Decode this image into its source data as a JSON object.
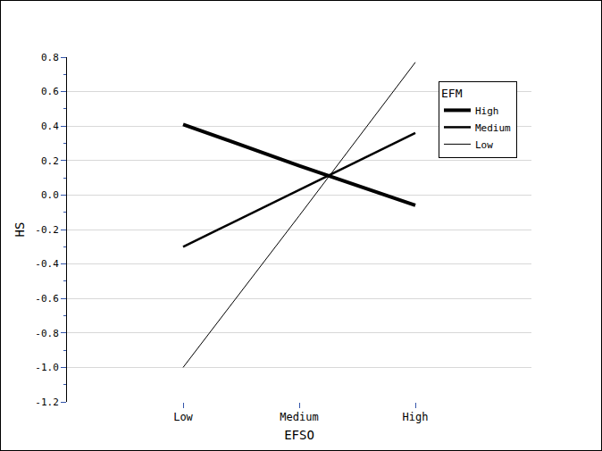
{
  "chart_data": {
    "type": "line",
    "x_label": "EFSO",
    "y_label": "HS",
    "legend_title": "EFM",
    "categories": [
      "Low",
      "Medium",
      "High"
    ],
    "series": [
      {
        "name": "High",
        "color": "#000000",
        "values": [
          0.41,
          0.17,
          -0.06
        ]
      },
      {
        "name": "Medium",
        "color": "#000000",
        "values": [
          -0.3,
          0.03,
          0.36
        ]
      },
      {
        "name": "Low",
        "color": "#000000",
        "values": [
          -1.0,
          -0.12,
          0.77
        ]
      }
    ],
    "ylim": [
      -1.2,
      0.8
    ],
    "yticks": [
      {
        "value": -1.2,
        "label": "-1.2"
      },
      {
        "value": -1,
        "label": "-1.0"
      },
      -0.8,
      -0.6,
      -0.4,
      -0.2,
      {
        "value": 0,
        "label": "0.0"
      },
      0.2,
      0.4,
      0.6,
      0.8
    ],
    "grid": true,
    "legend": "upper right"
  }
}
